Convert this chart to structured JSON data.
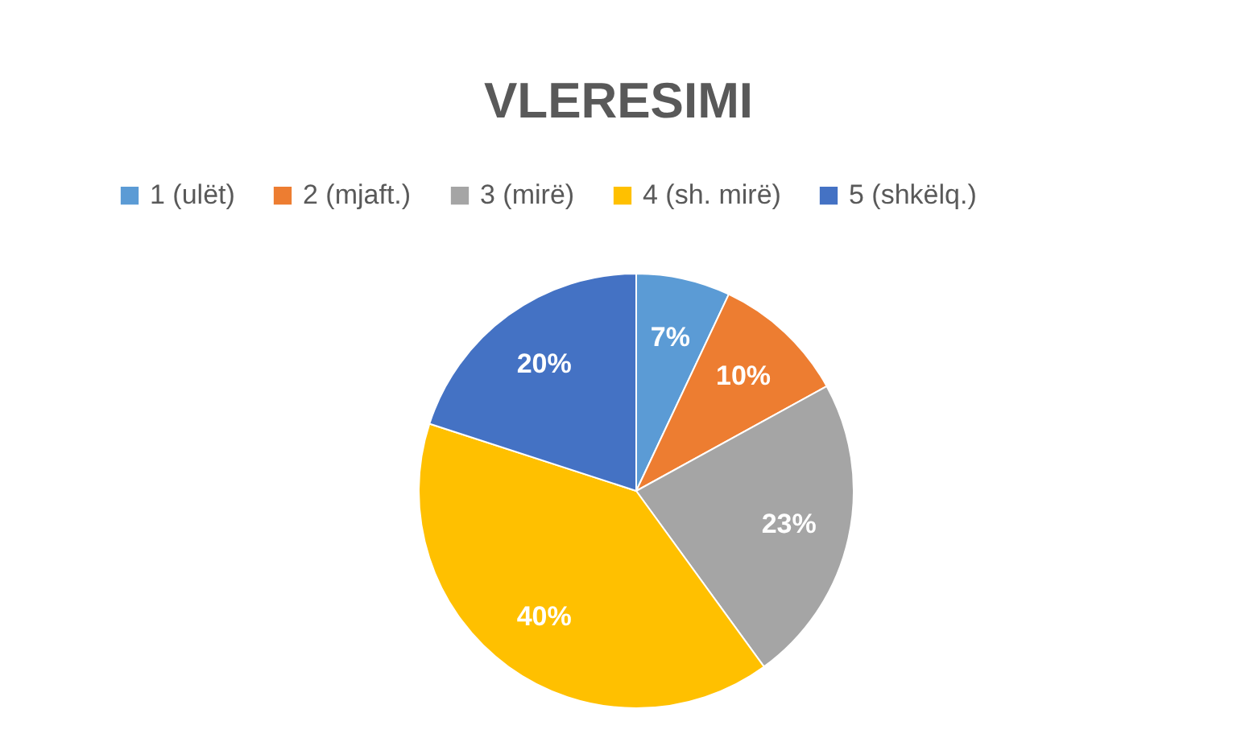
{
  "chart_data": {
    "type": "pie",
    "title": "VLERESIMI",
    "categories": [
      "1 (ulët)",
      "2 (mjaft.)",
      "3 (mirë)",
      "4 (sh. mirë)",
      "5 (shkëlq.)"
    ],
    "values": [
      7,
      10,
      23,
      40,
      20
    ],
    "colors": [
      "#5b9bd5",
      "#ed7d31",
      "#a5a5a5",
      "#ffc000",
      "#4472c4"
    ],
    "value_labels": [
      "7%",
      "10%",
      "23%",
      "40%",
      "20%"
    ],
    "legend": "top"
  }
}
